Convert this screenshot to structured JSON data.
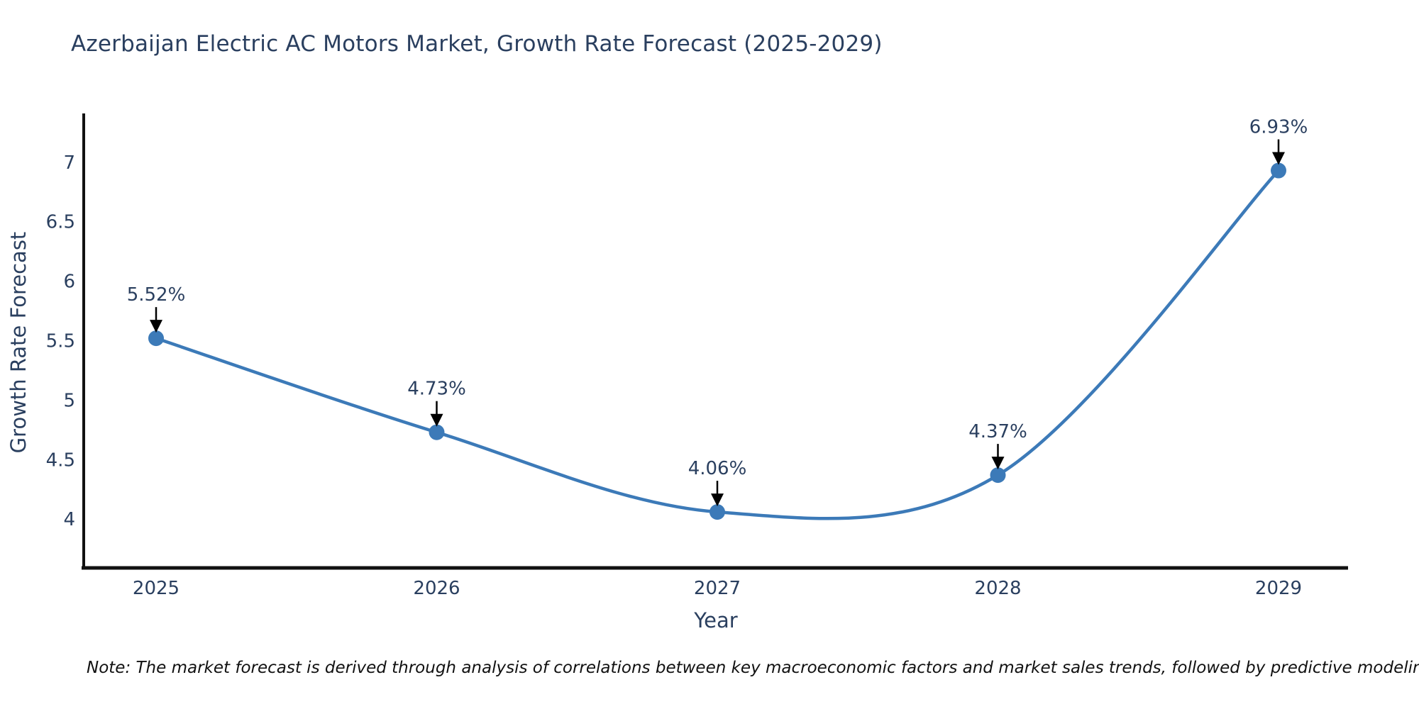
{
  "title": "Azerbaijan Electric AC Motors Market, Growth Rate Forecast (2025-2029)",
  "note": "Note: The market forecast is derived through analysis of correlations between key macroeconomic factors and market sales trends, followed by predictive modeling to project future sales",
  "chart_data": {
    "type": "line",
    "title": "Azerbaijan Electric AC Motors Market, Growth Rate Forecast (2025-2029)",
    "xlabel": "Year",
    "ylabel": "Growth Rate Forecast",
    "categories": [
      "2025",
      "2026",
      "2027",
      "2028",
      "2029"
    ],
    "series": [
      {
        "name": "Growth Rate Forecast",
        "values": [
          5.52,
          4.73,
          4.06,
          4.37,
          6.93
        ],
        "point_labels": [
          "5.52%",
          "4.73%",
          "4.06%",
          "4.37%",
          "6.93%"
        ]
      }
    ],
    "yticks": [
      4,
      4.5,
      5,
      5.5,
      6,
      6.5,
      7
    ],
    "ylim": [
      3.59,
      7.41
    ],
    "line_shape": "spline",
    "grid": false,
    "legend_position": "none",
    "colors": {
      "line": "#3c7ab8",
      "marker": "#3c7ab8",
      "axis": "#111111",
      "tick_text": "#2a3f5f",
      "annotation_text": "#2a3f5f",
      "annotation_arrow": "#000000",
      "background": "#ffffff"
    }
  }
}
